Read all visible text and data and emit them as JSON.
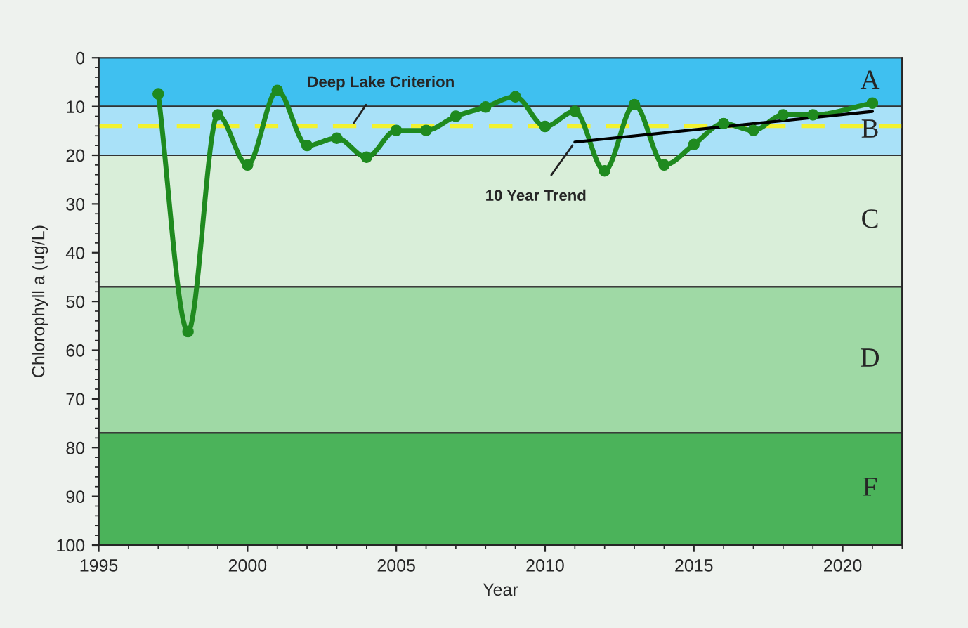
{
  "chart_data": {
    "type": "line",
    "xlabel": "Year",
    "ylabel": "Chlorophyll a (ug/L)",
    "series": [
      {
        "color": "#1f8a1f",
        "marker": "circle",
        "x": [
          1997,
          1998,
          1999,
          2000,
          2001,
          2002,
          2003,
          2004,
          2005,
          2006,
          2007,
          2008,
          2009,
          2010,
          2011,
          2012,
          2013,
          2014,
          2015,
          2016,
          2017,
          2018,
          2019,
          2021
        ],
        "values": [
          7.4,
          56.2,
          11.7,
          22,
          6.7,
          18,
          16.5,
          20.4,
          14.9,
          14.9,
          12,
          10.1,
          8,
          14.1,
          11,
          23.2,
          9.6,
          22,
          17.8,
          13.5,
          14.9,
          11.7,
          11.7,
          9.3
        ]
      },
      {
        "color": "#000000",
        "marker": "none",
        "x": [
          2011,
          2021
        ],
        "values": [
          17.3,
          11.0
        ]
      }
    ],
    "bands": [
      {
        "axis": "y",
        "from": 0,
        "to": 10,
        "label": "A",
        "color": "#3fc0f0"
      },
      {
        "axis": "y",
        "from": 10,
        "to": 20,
        "label": "B",
        "color": "#a9e1f8"
      },
      {
        "axis": "y",
        "from": 20,
        "to": 47,
        "label": "C",
        "color": "#d9eed9"
      },
      {
        "axis": "y",
        "from": 47,
        "to": 77,
        "label": "D",
        "color": "#9fd9a5"
      },
      {
        "axis": "y",
        "from": 77,
        "to": 100,
        "label": "F",
        "color": "#4bb35a"
      }
    ],
    "ref_lines": [
      {
        "axis": "y",
        "value": 14,
        "color": "#f2f230",
        "line_style": "dashed"
      }
    ],
    "annotations": [
      {
        "text": "Deep Lake Criterion",
        "x": 2003.5,
        "y": 14
      },
      {
        "text": "10 Year Trend",
        "x": 2011,
        "y": 17.3
      }
    ],
    "xlim": [
      1995,
      2022
    ],
    "xticks": [
      1995,
      2000,
      2005,
      2010,
      2015,
      2020
    ],
    "ylim": [
      100,
      0
    ],
    "yticks": [
      0,
      10,
      20,
      30,
      40,
      50,
      60,
      70,
      80,
      90,
      100
    ],
    "grid": false,
    "legend": false
  }
}
